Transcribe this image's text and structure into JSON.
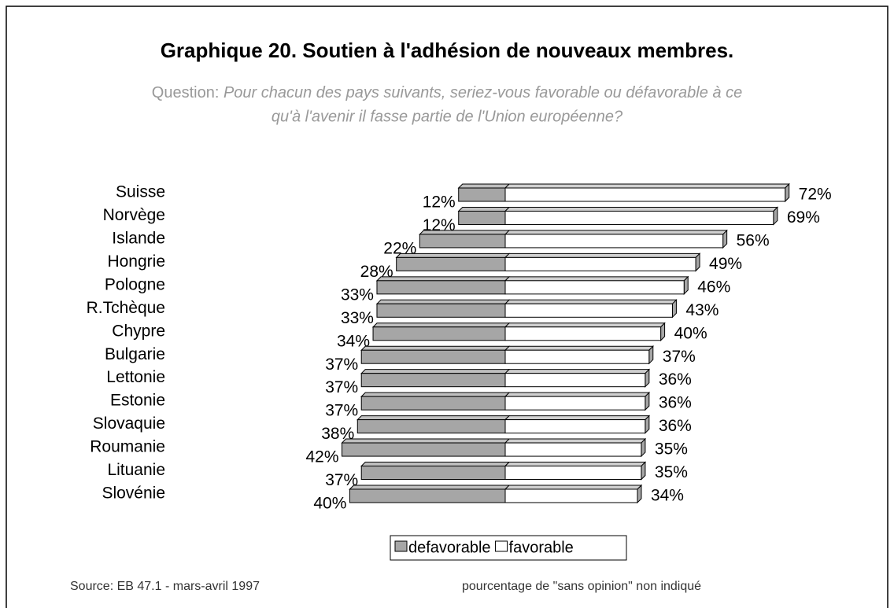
{
  "chart_data": {
    "type": "bar",
    "orientation": "horizontal",
    "stacking": "diverging",
    "title": "Graphique 20. Soutien à l'adhésion de nouveaux membres.",
    "question_label": "Question:",
    "question_lines": [
      "Pour chacun des pays suivants, seriez-vous favorable ou défavorable à ce",
      "qu'à l'avenir il fasse partie de l'Union européenne?"
    ],
    "categories": [
      "Suisse",
      "Norvège",
      "Islande",
      "Hongrie",
      "Pologne",
      "R.Tchèque",
      "Chypre",
      "Bulgarie",
      "Lettonie",
      "Estonie",
      "Slovaquie",
      "Roumanie",
      "Lituanie",
      "Slovénie"
    ],
    "series": [
      {
        "name": "defavorable",
        "color": "#a6a6a6",
        "direction": "left",
        "values": [
          12,
          12,
          22,
          28,
          33,
          33,
          34,
          37,
          37,
          37,
          38,
          42,
          37,
          40
        ],
        "value_labels": [
          "12%",
          "12%",
          "22%",
          "28%",
          "33%",
          "33%",
          "34%",
          "37%",
          "37%",
          "37%",
          "38%",
          "42%",
          "37%",
          "40%"
        ]
      },
      {
        "name": "favorable",
        "color": "#ffffff",
        "direction": "right",
        "values": [
          72,
          69,
          56,
          49,
          46,
          43,
          40,
          37,
          36,
          36,
          36,
          35,
          35,
          34
        ],
        "value_labels": [
          "72%",
          "69%",
          "56%",
          "49%",
          "46%",
          "43%",
          "40%",
          "37%",
          "36%",
          "36%",
          "36%",
          "35%",
          "35%",
          "34%"
        ]
      }
    ],
    "source": "Source: EB 47.1 - mars-avril 1997",
    "note": "pourcentage de \"sans opinion\" non indiqué"
  }
}
